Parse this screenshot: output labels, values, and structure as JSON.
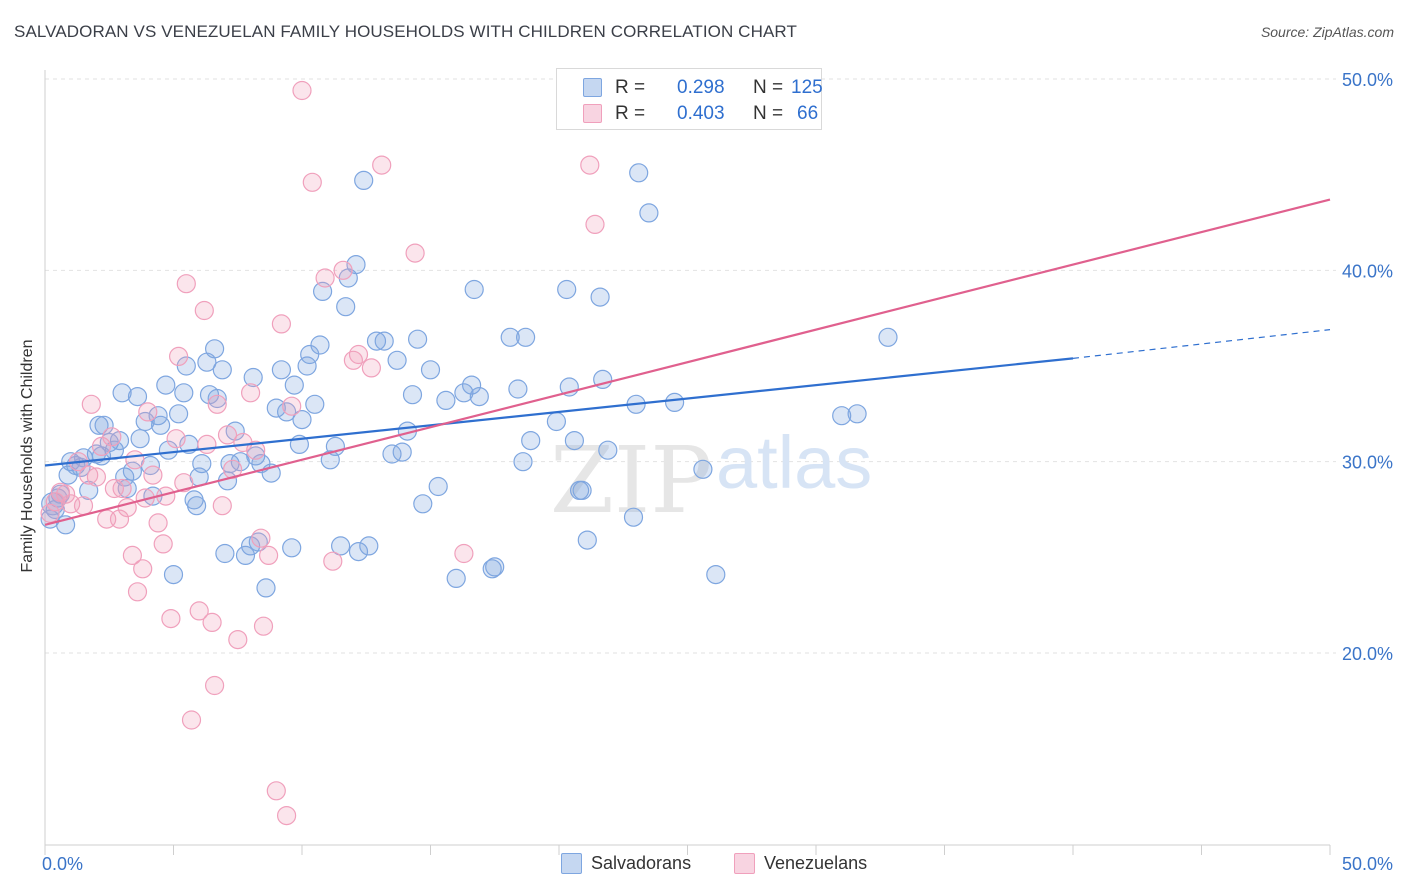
{
  "title": "SALVADORAN VS VENEZUELAN FAMILY HOUSEHOLDS WITH CHILDREN CORRELATION CHART",
  "source": "Source: ZipAtlas.com",
  "watermark": {
    "zip": "ZIP",
    "atlas": "atlas"
  },
  "legend": {
    "rows": [
      {
        "r_label": "R = ",
        "r_value": "0.298",
        "n_label": "N = ",
        "n_value": "125",
        "color": "#7ea6e0"
      },
      {
        "r_label": "R = ",
        "r_value": "0.403",
        "n_label": "N = ",
        "n_value": "66",
        "color": "#f0a0bc"
      }
    ]
  },
  "bottom_legend": [
    {
      "label": "Salvadorans",
      "color": "#7ea6e0"
    },
    {
      "label": "Venezuelans",
      "color": "#f0a0bc"
    }
  ],
  "chart_data": {
    "type": "scatter",
    "ylabel": "Family Households with Children",
    "x_tick_labels": [
      "0.0%",
      "50.0%"
    ],
    "y_tick_labels": [
      "20.0%",
      "30.0%",
      "40.0%",
      "50.0%"
    ],
    "xlim": [
      0,
      50
    ],
    "ylim": [
      11,
      52
    ],
    "y_ticks": [
      20,
      30,
      40,
      50
    ],
    "series": [
      {
        "name": "Salvadorans",
        "color": "#7ea6e0",
        "line_color": "#2f6fcf",
        "trend": {
          "x": [
            0,
            40
          ],
          "y": [
            29.8,
            35.4
          ],
          "dash_to": [
            50,
            36.9
          ]
        },
        "points": [
          [
            0.2,
            27.0
          ],
          [
            0.4,
            27.5
          ],
          [
            0.5,
            28.1
          ],
          [
            0.6,
            28.3
          ],
          [
            0.8,
            26.7
          ],
          [
            0.9,
            29.3
          ],
          [
            1.0,
            30.0
          ],
          [
            1.2,
            29.8
          ],
          [
            1.4,
            29.7
          ],
          [
            1.5,
            30.2
          ],
          [
            1.7,
            28.5
          ],
          [
            2.0,
            30.4
          ],
          [
            2.1,
            31.9
          ],
          [
            2.2,
            30.3
          ],
          [
            2.3,
            31.9
          ],
          [
            2.5,
            31.0
          ],
          [
            2.7,
            30.6
          ],
          [
            2.9,
            31.1
          ],
          [
            3.0,
            33.6
          ],
          [
            3.1,
            29.2
          ],
          [
            3.2,
            28.6
          ],
          [
            3.4,
            29.5
          ],
          [
            3.6,
            33.4
          ],
          [
            3.7,
            31.2
          ],
          [
            3.9,
            32.1
          ],
          [
            4.1,
            29.8
          ],
          [
            4.2,
            28.2
          ],
          [
            4.4,
            32.4
          ],
          [
            4.5,
            31.9
          ],
          [
            4.7,
            34.0
          ],
          [
            4.8,
            30.6
          ],
          [
            5.0,
            24.1
          ],
          [
            5.2,
            32.5
          ],
          [
            5.4,
            33.6
          ],
          [
            5.5,
            35.0
          ],
          [
            5.6,
            30.9
          ],
          [
            5.8,
            28.0
          ],
          [
            5.9,
            27.7
          ],
          [
            6.0,
            29.2
          ],
          [
            6.1,
            29.9
          ],
          [
            6.3,
            35.2
          ],
          [
            6.4,
            33.5
          ],
          [
            6.6,
            35.9
          ],
          [
            6.7,
            33.3
          ],
          [
            6.9,
            34.8
          ],
          [
            7.0,
            25.2
          ],
          [
            7.1,
            29.0
          ],
          [
            7.2,
            29.9
          ],
          [
            7.4,
            31.6
          ],
          [
            7.6,
            30.0
          ],
          [
            7.8,
            25.1
          ],
          [
            8.0,
            25.6
          ],
          [
            8.1,
            34.4
          ],
          [
            8.2,
            30.3
          ],
          [
            8.3,
            25.8
          ],
          [
            8.4,
            29.9
          ],
          [
            8.6,
            23.4
          ],
          [
            8.8,
            29.4
          ],
          [
            9.0,
            32.8
          ],
          [
            9.2,
            34.8
          ],
          [
            9.4,
            32.6
          ],
          [
            9.6,
            25.5
          ],
          [
            9.7,
            34.0
          ],
          [
            9.9,
            30.9
          ],
          [
            10.0,
            32.2
          ],
          [
            10.2,
            35.0
          ],
          [
            10.3,
            35.6
          ],
          [
            10.5,
            33.0
          ],
          [
            10.7,
            36.1
          ],
          [
            10.8,
            38.9
          ],
          [
            11.1,
            30.1
          ],
          [
            11.3,
            30.8
          ],
          [
            11.5,
            25.6
          ],
          [
            11.7,
            38.1
          ],
          [
            11.8,
            39.6
          ],
          [
            12.1,
            40.3
          ],
          [
            12.2,
            25.3
          ],
          [
            12.4,
            44.7
          ],
          [
            12.6,
            25.6
          ],
          [
            12.9,
            36.3
          ],
          [
            13.2,
            36.3
          ],
          [
            13.5,
            30.4
          ],
          [
            13.7,
            35.3
          ],
          [
            13.9,
            30.5
          ],
          [
            14.1,
            31.6
          ],
          [
            14.3,
            33.5
          ],
          [
            14.5,
            36.4
          ],
          [
            14.7,
            27.8
          ],
          [
            15.0,
            34.8
          ],
          [
            15.3,
            28.7
          ],
          [
            15.6,
            33.2
          ],
          [
            16.0,
            23.9
          ],
          [
            16.3,
            33.6
          ],
          [
            16.6,
            34.0
          ],
          [
            16.7,
            39.0
          ],
          [
            16.9,
            33.4
          ],
          [
            17.4,
            24.4
          ],
          [
            17.5,
            24.5
          ],
          [
            18.1,
            36.5
          ],
          [
            18.4,
            33.8
          ],
          [
            18.6,
            30.0
          ],
          [
            18.7,
            36.5
          ],
          [
            18.9,
            31.1
          ],
          [
            19.9,
            32.1
          ],
          [
            20.3,
            39.0
          ],
          [
            20.4,
            33.9
          ],
          [
            20.6,
            31.1
          ],
          [
            20.8,
            28.5
          ],
          [
            20.9,
            28.5
          ],
          [
            21.1,
            25.9
          ],
          [
            21.6,
            38.6
          ],
          [
            21.7,
            34.3
          ],
          [
            21.9,
            30.6
          ],
          [
            22.9,
            27.1
          ],
          [
            23.0,
            33.0
          ],
          [
            23.1,
            45.1
          ],
          [
            23.5,
            43.0
          ],
          [
            24.5,
            33.1
          ],
          [
            25.6,
            29.6
          ],
          [
            26.1,
            24.1
          ],
          [
            28.0,
            49.9
          ],
          [
            31.0,
            32.4
          ],
          [
            31.6,
            32.5
          ],
          [
            32.8,
            36.5
          ],
          [
            0.3,
            27.8
          ]
        ]
      },
      {
        "name": "Venezuelans",
        "color": "#f0a0bc",
        "line_color": "#e0608e",
        "trend": {
          "x": [
            0,
            50
          ],
          "y": [
            26.7,
            43.7
          ]
        },
        "points": [
          [
            0.2,
            27.3
          ],
          [
            0.4,
            27.9
          ],
          [
            0.6,
            28.4
          ],
          [
            0.8,
            28.3
          ],
          [
            1.0,
            27.8
          ],
          [
            1.3,
            30.0
          ],
          [
            1.5,
            27.7
          ],
          [
            1.7,
            29.3
          ],
          [
            1.8,
            33.0
          ],
          [
            2.0,
            29.2
          ],
          [
            2.2,
            30.8
          ],
          [
            2.4,
            27.0
          ],
          [
            2.6,
            31.3
          ],
          [
            2.7,
            28.6
          ],
          [
            2.9,
            27.0
          ],
          [
            3.0,
            28.6
          ],
          [
            3.2,
            27.6
          ],
          [
            3.4,
            25.1
          ],
          [
            3.5,
            30.1
          ],
          [
            3.6,
            23.2
          ],
          [
            3.8,
            24.4
          ],
          [
            3.9,
            28.1
          ],
          [
            4.0,
            32.6
          ],
          [
            4.2,
            29.3
          ],
          [
            4.4,
            26.8
          ],
          [
            4.6,
            25.7
          ],
          [
            4.7,
            28.2
          ],
          [
            4.9,
            21.8
          ],
          [
            5.1,
            31.2
          ],
          [
            5.2,
            35.5
          ],
          [
            5.4,
            28.9
          ],
          [
            5.5,
            39.3
          ],
          [
            5.7,
            16.5
          ],
          [
            6.0,
            22.2
          ],
          [
            6.2,
            37.9
          ],
          [
            6.3,
            30.9
          ],
          [
            6.5,
            21.6
          ],
          [
            6.6,
            18.3
          ],
          [
            6.7,
            33.0
          ],
          [
            6.9,
            27.7
          ],
          [
            7.1,
            31.4
          ],
          [
            7.3,
            29.6
          ],
          [
            7.5,
            20.7
          ],
          [
            7.7,
            31.0
          ],
          [
            8.0,
            33.6
          ],
          [
            8.2,
            30.6
          ],
          [
            8.4,
            26.0
          ],
          [
            8.5,
            21.4
          ],
          [
            8.7,
            25.1
          ],
          [
            9.0,
            12.8
          ],
          [
            9.2,
            37.2
          ],
          [
            9.4,
            11.5
          ],
          [
            9.6,
            32.9
          ],
          [
            10.0,
            49.4
          ],
          [
            10.4,
            44.6
          ],
          [
            10.9,
            39.6
          ],
          [
            11.2,
            24.8
          ],
          [
            11.6,
            40.0
          ],
          [
            12.0,
            35.3
          ],
          [
            12.2,
            35.6
          ],
          [
            12.7,
            34.9
          ],
          [
            13.1,
            45.5
          ],
          [
            14.4,
            40.9
          ],
          [
            16.3,
            25.2
          ],
          [
            21.2,
            45.5
          ],
          [
            21.4,
            42.4
          ]
        ]
      }
    ]
  }
}
